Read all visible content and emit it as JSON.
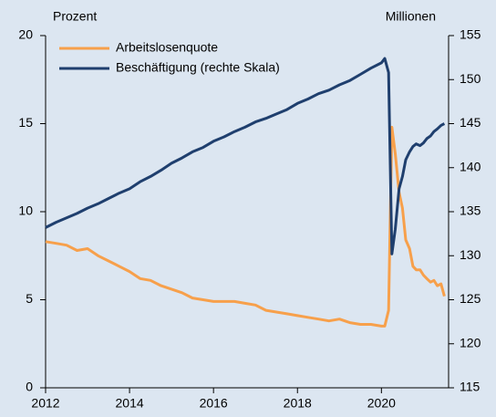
{
  "chart_data": {
    "type": "line",
    "y_label": "Prozent",
    "y2_label": "Millionen",
    "x": [
      2012,
      2012.25,
      2012.5,
      2012.75,
      2013,
      2013.25,
      2013.5,
      2013.75,
      2014,
      2014.25,
      2014.5,
      2014.75,
      2015,
      2015.25,
      2015.5,
      2015.75,
      2016,
      2016.25,
      2016.5,
      2016.75,
      2017,
      2017.25,
      2017.5,
      2017.75,
      2018,
      2018.25,
      2018.5,
      2018.75,
      2019,
      2019.25,
      2019.5,
      2019.75,
      2020,
      2020.08,
      2020.17,
      2020.25,
      2020.33,
      2020.42,
      2020.5,
      2020.58,
      2020.67,
      2020.75,
      2020.83,
      2020.92,
      2021,
      2021.08,
      2021.17,
      2021.25,
      2021.33,
      2021.42,
      2021.5
    ],
    "series": [
      {
        "name": "Arbeitslosenquote",
        "color": "#f7a04b",
        "values": [
          8.3,
          8.2,
          8.1,
          7.8,
          7.9,
          7.5,
          7.2,
          6.9,
          6.6,
          6.2,
          6.1,
          5.8,
          5.6,
          5.4,
          5.1,
          5.0,
          4.9,
          4.9,
          4.9,
          4.8,
          4.7,
          4.4,
          4.3,
          4.2,
          4.1,
          4.0,
          3.9,
          3.8,
          3.9,
          3.7,
          3.6,
          3.6,
          3.5,
          3.5,
          4.4,
          14.8,
          13.3,
          11.1,
          10.2,
          8.4,
          7.9,
          6.9,
          6.7,
          6.7,
          6.4,
          6.2,
          6.0,
          6.1,
          5.8,
          5.9,
          5.2
        ]
      },
      {
        "name": "Beschäftigung (rechte Skala)",
        "color": "#1f3f6e",
        "axis": "y2",
        "values": [
          133.2,
          133.8,
          134.3,
          134.8,
          135.4,
          135.9,
          136.5,
          137.1,
          137.6,
          138.4,
          139.0,
          139.7,
          140.5,
          141.1,
          141.8,
          142.3,
          143.0,
          143.5,
          144.1,
          144.6,
          145.2,
          145.6,
          146.1,
          146.6,
          147.3,
          147.8,
          148.4,
          148.8,
          149.4,
          149.9,
          150.6,
          151.3,
          151.9,
          152.4,
          150.8,
          130.2,
          133.0,
          137.6,
          139.0,
          140.9,
          141.8,
          142.4,
          142.7,
          142.5,
          142.8,
          143.3,
          143.6,
          144.1,
          144.4,
          144.8,
          145.0
        ]
      }
    ],
    "xlim": [
      2012,
      2021.6
    ],
    "xticks": [
      2012,
      2014,
      2016,
      2018,
      2020
    ],
    "ylim": [
      0,
      20
    ],
    "yticks": [
      0,
      5,
      10,
      15,
      20
    ],
    "y2lim": [
      115,
      155
    ],
    "y2ticks": [
      115,
      120,
      125,
      130,
      135,
      140,
      145,
      150,
      155
    ],
    "legend": "upper left"
  }
}
